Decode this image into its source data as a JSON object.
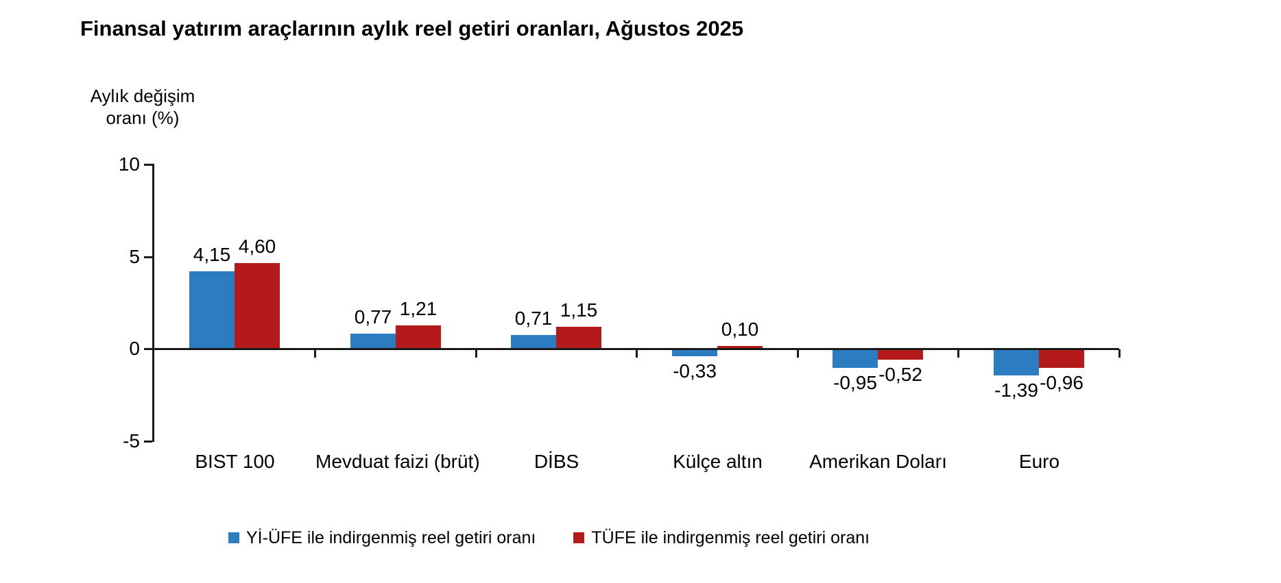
{
  "chart_data": {
    "type": "bar",
    "title": "Finansal yatırım araçlarının aylık reel getiri oranları, Ağustos 2025",
    "y_axis": {
      "title_line1": "Aylık değişim",
      "title_line2": "oranı (%)",
      "tick_labels": [
        "10",
        "5",
        "0",
        "-5"
      ],
      "tick_values": [
        10,
        5,
        0,
        -5
      ],
      "range": [
        -5,
        10
      ]
    },
    "xlabel": "",
    "categories": [
      "BIST 100",
      "Mevduat faizi (brüt)",
      "DİBS",
      "Külçe altın",
      "Amerikan Doları",
      "Euro"
    ],
    "series": [
      {
        "name": "Yİ-ÜFE ile indirgenmiş reel getiri oranı",
        "color": "#2B7CC1",
        "values": [
          4.15,
          0.77,
          0.71,
          -0.33,
          -0.95,
          -1.39
        ],
        "labels": [
          "4,15",
          "0,77",
          "0,71",
          "-0,33",
          "-0,95",
          "-1,39"
        ]
      },
      {
        "name": "TÜFE ile indirgenmiş reel getiri oranı",
        "color": "#B41A1A",
        "values": [
          4.6,
          1.21,
          1.15,
          0.1,
          -0.52,
          -0.96
        ],
        "labels": [
          "4,60",
          "1,21",
          "1,15",
          "0,10",
          "-0,52",
          "-0,96"
        ]
      }
    ],
    "grid": false,
    "legend_position": "bottom"
  }
}
